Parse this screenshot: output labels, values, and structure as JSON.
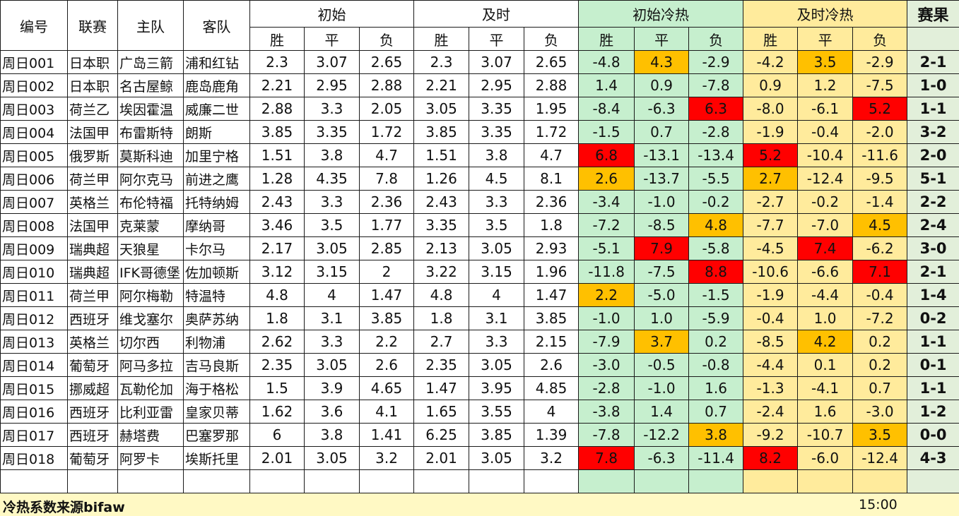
{
  "header": {
    "id": "编号",
    "league": "联赛",
    "home": "主队",
    "away": "客队",
    "initial": "初始",
    "live": "及时",
    "initial_heat": "初始冷热",
    "live_heat": "及时冷热",
    "result": "赛果",
    "win": "胜",
    "draw": "平",
    "lose": "负"
  },
  "rows": [
    {
      "id": "周日001",
      "league": "日本职",
      "home": "广岛三箭",
      "away": "浦和红钻",
      "i": [
        "2.3",
        "3.07",
        "2.65"
      ],
      "l": [
        "2.3",
        "3.07",
        "2.65"
      ],
      "ih": [
        "-4.8",
        "4.3",
        "-2.9"
      ],
      "lh": [
        "-4.2",
        "3.5",
        "-2.9"
      ],
      "res": "2-1"
    },
    {
      "id": "周日002",
      "league": "日本职",
      "home": "名古屋鲸",
      "away": "鹿岛鹿角",
      "i": [
        "2.21",
        "2.95",
        "2.88"
      ],
      "l": [
        "2.21",
        "2.95",
        "2.88"
      ],
      "ih": [
        "1.4",
        "0.9",
        "-7.8"
      ],
      "lh": [
        "0.9",
        "1.2",
        "-7.5"
      ],
      "res": "1-0"
    },
    {
      "id": "周日003",
      "league": "荷兰乙",
      "home": "埃因霍温",
      "away": "威廉二世",
      "i": [
        "2.88",
        "3.3",
        "2.05"
      ],
      "l": [
        "3.05",
        "3.35",
        "1.95"
      ],
      "ih": [
        "-8.4",
        "-6.3",
        "6.3"
      ],
      "lh": [
        "-8.0",
        "-6.1",
        "5.2"
      ],
      "res": "1-1"
    },
    {
      "id": "周日004",
      "league": "法国甲",
      "home": "布雷斯特",
      "away": "朗斯",
      "i": [
        "3.85",
        "3.35",
        "1.72"
      ],
      "l": [
        "3.85",
        "3.35",
        "1.72"
      ],
      "ih": [
        "-1.5",
        "0.7",
        "-2.8"
      ],
      "lh": [
        "-1.9",
        "-0.4",
        "-2.0"
      ],
      "res": "3-2"
    },
    {
      "id": "周日005",
      "league": "俄罗斯",
      "home": "莫斯科迪",
      "away": "加里宁格",
      "i": [
        "1.51",
        "3.8",
        "4.7"
      ],
      "l": [
        "1.51",
        "3.8",
        "4.7"
      ],
      "ih": [
        "6.8",
        "-13.1",
        "-13.4"
      ],
      "lh": [
        "5.2",
        "-10.4",
        "-11.6"
      ],
      "res": "2-0"
    },
    {
      "id": "周日006",
      "league": "荷兰甲",
      "home": "阿尔克马",
      "away": "前进之鹰",
      "i": [
        "1.28",
        "4.35",
        "7.8"
      ],
      "l": [
        "1.26",
        "4.5",
        "8.1"
      ],
      "ih": [
        "2.6",
        "-13.7",
        "-5.5"
      ],
      "lh": [
        "2.7",
        "-12.4",
        "-9.5"
      ],
      "res": "5-1"
    },
    {
      "id": "周日007",
      "league": "英格兰",
      "home": "布伦特福",
      "away": "托特纳姆",
      "i": [
        "2.43",
        "3.3",
        "2.36"
      ],
      "l": [
        "2.43",
        "3.3",
        "2.36"
      ],
      "ih": [
        "-3.4",
        "-1.0",
        "-0.2"
      ],
      "lh": [
        "-2.7",
        "-0.2",
        "-1.4"
      ],
      "res": "2-2"
    },
    {
      "id": "周日008",
      "league": "法国甲",
      "home": "克莱蒙",
      "away": "摩纳哥",
      "i": [
        "3.46",
        "3.5",
        "1.77"
      ],
      "l": [
        "3.35",
        "3.5",
        "1.8"
      ],
      "ih": [
        "-7.2",
        "-8.5",
        "4.8"
      ],
      "lh": [
        "-7.7",
        "-7.0",
        "4.5"
      ],
      "res": "2-4"
    },
    {
      "id": "周日009",
      "league": "瑞典超",
      "home": "天狼星",
      "away": "卡尔马",
      "i": [
        "2.17",
        "3.05",
        "2.85"
      ],
      "l": [
        "2.13",
        "3.05",
        "2.93"
      ],
      "ih": [
        "-5.1",
        "7.9",
        "-5.8"
      ],
      "lh": [
        "-4.5",
        "7.4",
        "-6.2"
      ],
      "res": "3-0"
    },
    {
      "id": "周日010",
      "league": "瑞典超",
      "home": "IFK哥德堡",
      "away": "佐加顿斯",
      "i": [
        "3.12",
        "3.15",
        "2"
      ],
      "l": [
        "3.22",
        "3.15",
        "1.96"
      ],
      "ih": [
        "-11.8",
        "-7.5",
        "8.8"
      ],
      "lh": [
        "-10.6",
        "-6.6",
        "7.1"
      ],
      "res": "2-1"
    },
    {
      "id": "周日011",
      "league": "荷兰甲",
      "home": "阿尔梅勒",
      "away": "特温特",
      "i": [
        "4.8",
        "4",
        "1.47"
      ],
      "l": [
        "4.8",
        "4",
        "1.47"
      ],
      "ih": [
        "2.2",
        "-5.0",
        "-1.5"
      ],
      "lh": [
        "-1.9",
        "-4.4",
        "-0.4"
      ],
      "res": "1-4"
    },
    {
      "id": "周日012",
      "league": "西班牙",
      "home": "维戈塞尔",
      "away": "奥萨苏纳",
      "i": [
        "1.8",
        "3.1",
        "3.85"
      ],
      "l": [
        "1.8",
        "3.1",
        "3.85"
      ],
      "ih": [
        "-1.0",
        "1.0",
        "-5.9"
      ],
      "lh": [
        "-0.4",
        "1.0",
        "-7.2"
      ],
      "res": "0-2"
    },
    {
      "id": "周日013",
      "league": "英格兰",
      "home": "切尔西",
      "away": "利物浦",
      "i": [
        "2.62",
        "3.3",
        "2.2"
      ],
      "l": [
        "2.7",
        "3.3",
        "2.15"
      ],
      "ih": [
        "-7.9",
        "3.7",
        "0.2"
      ],
      "lh": [
        "-8.5",
        "4.2",
        "0.2"
      ],
      "res": "1-1"
    },
    {
      "id": "周日014",
      "league": "葡萄牙",
      "home": "阿马多拉",
      "away": "吉马良斯",
      "i": [
        "2.35",
        "3.05",
        "2.6"
      ],
      "l": [
        "2.35",
        "3.05",
        "2.6"
      ],
      "ih": [
        "-3.0",
        "-0.5",
        "-0.8"
      ],
      "lh": [
        "-4.4",
        "0.1",
        "0.2"
      ],
      "res": "0-1"
    },
    {
      "id": "周日015",
      "league": "挪威超",
      "home": "瓦勒伦加",
      "away": "海于格松",
      "i": [
        "1.5",
        "3.9",
        "4.65"
      ],
      "l": [
        "1.47",
        "3.95",
        "4.85"
      ],
      "ih": [
        "-2.8",
        "-1.0",
        "1.6"
      ],
      "lh": [
        "-1.3",
        "-4.1",
        "0.7"
      ],
      "res": "1-1"
    },
    {
      "id": "周日016",
      "league": "西班牙",
      "home": "比利亚雷",
      "away": "皇家贝蒂",
      "i": [
        "1.62",
        "3.6",
        "4.1"
      ],
      "l": [
        "1.65",
        "3.55",
        "4"
      ],
      "ih": [
        "-3.8",
        "1.4",
        "0.7"
      ],
      "lh": [
        "-2.4",
        "1.6",
        "-3.0"
      ],
      "res": "1-2"
    },
    {
      "id": "周日017",
      "league": "西班牙",
      "home": "赫塔费",
      "away": "巴塞罗那",
      "i": [
        "6",
        "3.8",
        "1.41"
      ],
      "l": [
        "6.25",
        "3.85",
        "1.39"
      ],
      "ih": [
        "-7.8",
        "-12.2",
        "3.8"
      ],
      "lh": [
        "-9.2",
        "-10.7",
        "3.5"
      ],
      "res": "0-0"
    },
    {
      "id": "周日018",
      "league": "葡萄牙",
      "home": "阿罗卡",
      "away": "埃斯托里",
      "i": [
        "2.01",
        "3.05",
        "3.2"
      ],
      "l": [
        "2.01",
        "3.05",
        "3.2"
      ],
      "ih": [
        "7.8",
        "-6.3",
        "-11.4"
      ],
      "lh": [
        "8.2",
        "-6.0",
        "-12.4"
      ],
      "res": "4-3"
    }
  ],
  "highlights": {
    "orange": "#ffc000",
    "red": "#ff0000",
    "initial_heat": [
      {
        "row": 0,
        "col": 1,
        "color": "orange"
      },
      {
        "row": 2,
        "col": 2,
        "color": "red"
      },
      {
        "row": 4,
        "col": 0,
        "color": "red"
      },
      {
        "row": 5,
        "col": 0,
        "color": "orange"
      },
      {
        "row": 7,
        "col": 2,
        "color": "orange"
      },
      {
        "row": 8,
        "col": 1,
        "color": "red"
      },
      {
        "row": 9,
        "col": 2,
        "color": "red"
      },
      {
        "row": 10,
        "col": 0,
        "color": "orange"
      },
      {
        "row": 12,
        "col": 1,
        "color": "orange"
      },
      {
        "row": 16,
        "col": 2,
        "color": "orange"
      },
      {
        "row": 17,
        "col": 0,
        "color": "red"
      }
    ],
    "live_heat": [
      {
        "row": 0,
        "col": 1,
        "color": "orange"
      },
      {
        "row": 2,
        "col": 2,
        "color": "red"
      },
      {
        "row": 4,
        "col": 0,
        "color": "red"
      },
      {
        "row": 5,
        "col": 0,
        "color": "orange"
      },
      {
        "row": 7,
        "col": 2,
        "color": "orange"
      },
      {
        "row": 8,
        "col": 1,
        "color": "red"
      },
      {
        "row": 9,
        "col": 2,
        "color": "red"
      },
      {
        "row": 12,
        "col": 1,
        "color": "orange"
      },
      {
        "row": 16,
        "col": 2,
        "color": "orange"
      },
      {
        "row": 17,
        "col": 0,
        "color": "red"
      }
    ]
  },
  "colors": {
    "initial_heat_bg": "#c6efce",
    "live_heat_bg": "#ffeb9c",
    "result_bg": "#e2efda",
    "footer_bg": "#fff9c4"
  },
  "footer": {
    "note": "冷热系数来源bifaw",
    "time": "15:00"
  }
}
